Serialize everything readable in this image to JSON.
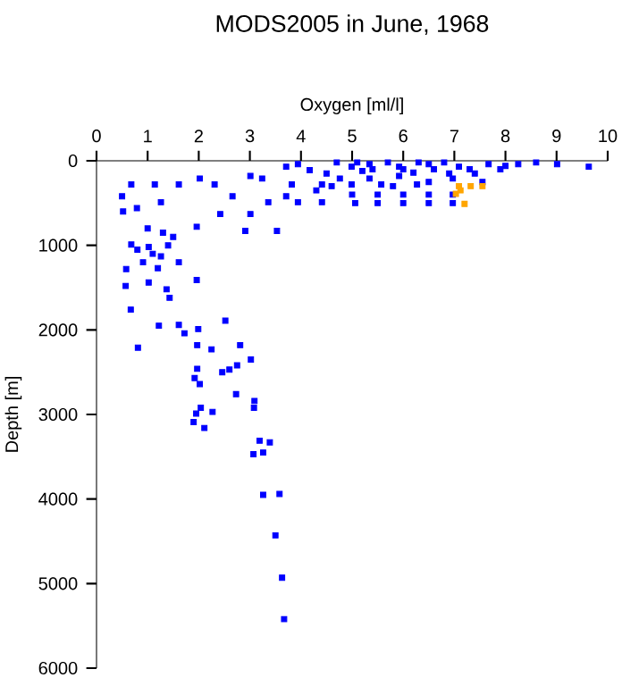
{
  "chart_data": {
    "type": "scatter",
    "title": "MODS2005 in June, 1968",
    "xlabel": "Oxygen [ml/l]",
    "ylabel": "Depth [m]",
    "xlim": [
      0,
      10
    ],
    "ylim": [
      6000,
      0
    ],
    "xticks": [
      0,
      1,
      2,
      3,
      4,
      5,
      6,
      7,
      8,
      9,
      10
    ],
    "yticks": [
      0,
      1000,
      2000,
      3000,
      4000,
      5000,
      6000
    ],
    "grid": false,
    "marker": "square",
    "series": [
      {
        "color": "#0000ff",
        "x": [
          0.81,
          1.22,
          1.61,
          1.72,
          1.99,
          1.97,
          2.25,
          2.52,
          2.81,
          3.02,
          2.46,
          2.75,
          2.6,
          1.97,
          1.92,
          2.02,
          2.73,
          3.09,
          3.08,
          2.04,
          1.95,
          1.9,
          2.11,
          2.27,
          3.19,
          3.39,
          3.07,
          3.26,
          3.26,
          3.58,
          3.5,
          3.63,
          3.67,
          0.68,
          0.5,
          0.52,
          0.79,
          1.14,
          1.26,
          1.61,
          2.02,
          2.31,
          2.66,
          3.01,
          3.24,
          3.36,
          3.01,
          3.53,
          2.91,
          2.42,
          1.96,
          0.68,
          1.02,
          1.26,
          1.61,
          0.91,
          1.2,
          0.58,
          0.57,
          1.02,
          1.37,
          1.43,
          1.96,
          0.67,
          3.71,
          3.94,
          4.17,
          4.41,
          3.82,
          3.94,
          4.41,
          3.71,
          4.76,
          4.99,
          5.34,
          5.92,
          6.5,
          7.09,
          7.67,
          8.25,
          8.6,
          9.01,
          9.63,
          5.34,
          5.92,
          6.5,
          6.97,
          7.55,
          5.57,
          6.27,
          4.99,
          5.0,
          5.5,
          6.0,
          6.5,
          6.97,
          5.06,
          5.5,
          6.0,
          6.5,
          6.97,
          4.5,
          5.2,
          6.2,
          7.3,
          8.0,
          4.7,
          5.1,
          5.7,
          6.3,
          6.8,
          5.4,
          6.0,
          6.6,
          4.3,
          4.6,
          5.8,
          6.9,
          7.4,
          7.9,
          1.0,
          1.3,
          1.5,
          0.8,
          1.1,
          1.4
        ],
        "values": [
          2210,
          1950,
          1940,
          2040,
          1990,
          2180,
          2230,
          1890,
          2180,
          2350,
          2500,
          2420,
          2470,
          2460,
          2570,
          2640,
          2760,
          2840,
          2920,
          2920,
          2990,
          3090,
          3160,
          2970,
          3310,
          3330,
          3470,
          3450,
          3950,
          3940,
          4430,
          4930,
          5420,
          280,
          420,
          600,
          560,
          280,
          490,
          280,
          210,
          280,
          420,
          180,
          210,
          490,
          630,
          830,
          830,
          630,
          780,
          990,
          1020,
          1130,
          1200,
          1200,
          1270,
          1280,
          1480,
          1440,
          1520,
          1620,
          1410,
          1760,
          70,
          40,
          110,
          280,
          280,
          490,
          490,
          420,
          210,
          70,
          40,
          70,
          40,
          70,
          40,
          40,
          20,
          40,
          70,
          210,
          180,
          250,
          210,
          250,
          280,
          280,
          280,
          400,
          400,
          400,
          400,
          400,
          500,
          500,
          500,
          500,
          500,
          150,
          120,
          140,
          100,
          60,
          20,
          20,
          20,
          20,
          20,
          100,
          100,
          100,
          350,
          300,
          300,
          150,
          150,
          100,
          800,
          850,
          900,
          1050,
          1100,
          1000
        ]
      },
      {
        "color": "#ffa500",
        "x": [
          7.09,
          7.03,
          7.32,
          7.55,
          7.2,
          7.12
        ],
        "values": [
          300,
          390,
          300,
          300,
          510,
          350
        ]
      }
    ]
  }
}
